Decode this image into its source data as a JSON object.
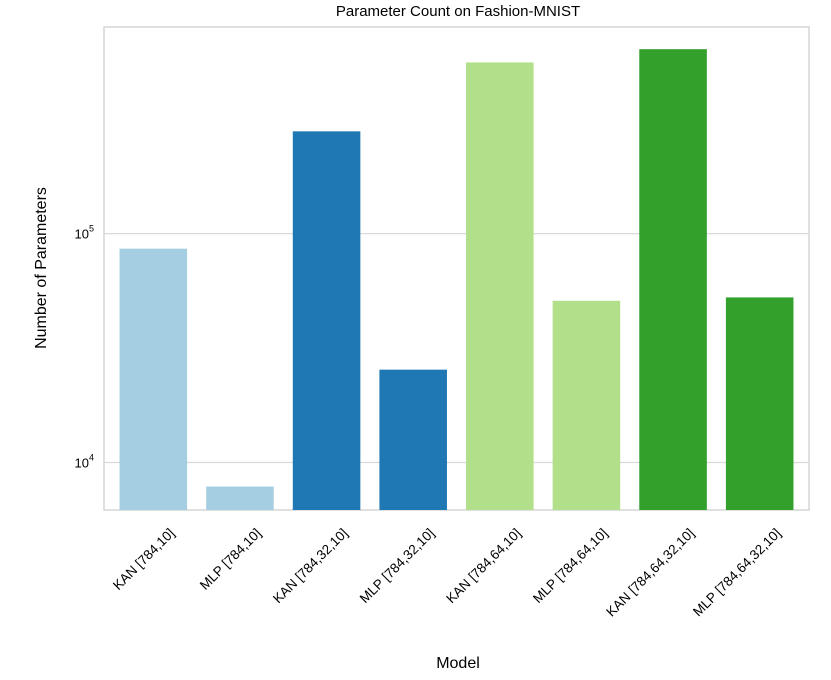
{
  "chart_data": {
    "type": "bar",
    "title": "Parameter Count on Fashion-MNIST",
    "xlabel": "Model",
    "ylabel": "Number of Parameters",
    "yscale": "log",
    "ylim": [
      6200,
      800000
    ],
    "yticks": [
      {
        "value": 10000,
        "base": "10",
        "exp": "4"
      },
      {
        "value": 100000,
        "base": "10",
        "exp": "5"
      }
    ],
    "grid": true,
    "categories": [
      "KAN [784,10]",
      "MLP [784,10]",
      "KAN [784,32,10]",
      "MLP [784,32,10]",
      "KAN [784,64,10]",
      "MLP [784,64,10]",
      "KAN [784,64,32,10]",
      "MLP [784,64,32,10]"
    ],
    "values": [
      86000,
      7850,
      280000,
      25450,
      560000,
      50890,
      640000,
      52650
    ],
    "colors": [
      "#a6cee3",
      "#a6cee3",
      "#1f78b4",
      "#1f78b4",
      "#b2df8a",
      "#b2df8a",
      "#33a02c",
      "#33a02c"
    ]
  }
}
